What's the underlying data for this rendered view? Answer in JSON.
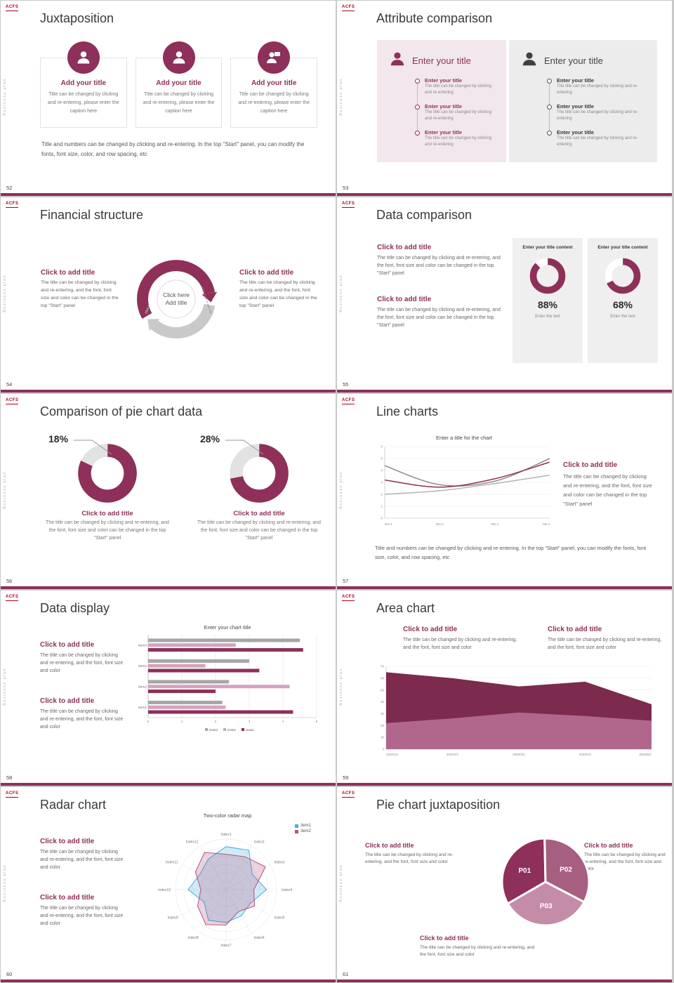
{
  "global": {
    "logo_text": "ACFS",
    "side_text": "Business plan"
  },
  "colors": {
    "accent": "#8e3059",
    "accent_mid": "#a65f80",
    "accent_light": "#c58ca8",
    "gray_dark": "#8a8a8a",
    "gray_light": "#b3b3b3",
    "blue": "#45aede"
  },
  "common": {
    "click_title": "Click to add title",
    "body_full": "The title can be changed by clicking and re-entering, and the font, font size and color can be changed in the top \"Start\" panel",
    "body_short": "The title can be changed by clicking and re-entering, and the font, font size and color",
    "note": "Title and numbers can be changed by clicking and re-entering. In the top \"Start\" panel, you can modify the fonts, font size, color, and row spacing, etc"
  },
  "slide52": {
    "title": "Juxtaposition",
    "page": "52",
    "item_title": "Add your title",
    "item_caption": "Title can be changed by clicking and re-entering, please enter the caption here"
  },
  "slide53": {
    "title": "Attribute comparison",
    "page": "53",
    "panel_title": "Enter your title",
    "item_title": "Enter your title",
    "item_caption": "The title can be changed by clicking and re-entering"
  },
  "slide54": {
    "title": "Financial structure",
    "page": "54",
    "center_line1": "Click here",
    "center_line2": "Add title",
    "arc_label": "Click here to add title"
  },
  "slide55": {
    "title": "Data comparison",
    "page": "55",
    "card_title": "Enter your title content",
    "card_caption": "Enter the text",
    "chart_data": {
      "type": "donut",
      "donuts": [
        {
          "percent": 88,
          "label": "88%"
        },
        {
          "percent": 68,
          "label": "68%"
        }
      ]
    }
  },
  "slide56": {
    "title": "Comparison of pie chart data",
    "page": "56",
    "chart_data": {
      "type": "donut",
      "donuts": [
        {
          "percent": 18,
          "label": "18%"
        },
        {
          "percent": 28,
          "label": "28%"
        }
      ]
    }
  },
  "slide57": {
    "title": "Line charts",
    "page": "57",
    "chart_data": {
      "type": "line",
      "title": "Enter a title for the chart",
      "x_labels": [
        "NO.1",
        "NO.2",
        "NO.3",
        "NO.4"
      ],
      "ylim": [
        0,
        6
      ],
      "ytick_step": 1,
      "series": [
        {
          "color": "#b3b3b3",
          "values": [
            2.0,
            2.3,
            2.9,
            3.6
          ]
        },
        {
          "color": "#8a8a8a",
          "values": [
            4.4,
            2.8,
            3.1,
            5.0
          ]
        },
        {
          "color": "#8e3059",
          "values": [
            3.2,
            2.6,
            3.3,
            4.7
          ]
        }
      ]
    }
  },
  "slide58": {
    "title": "Data display",
    "page": "58",
    "chart_data": {
      "type": "bar",
      "title": "Enter your chart title",
      "categories": [
        "Item1",
        "Item2",
        "Item3",
        "Item4"
      ],
      "xlim": [
        0,
        5
      ],
      "series": [
        {
          "name": "Data1",
          "color": "#8e3059",
          "values": [
            4.3,
            2.0,
            3.3,
            4.6
          ]
        },
        {
          "name": "Data2",
          "color": "#d4a3bd",
          "values": [
            2.3,
            4.2,
            1.7,
            2.6
          ]
        },
        {
          "name": "Data3",
          "color": "#a6a6a6",
          "values": [
            2.2,
            2.4,
            3.0,
            4.5
          ]
        }
      ],
      "legend": [
        "Data3",
        "Data2",
        "Data1"
      ]
    }
  },
  "slide59": {
    "title": "Area chart",
    "page": "59",
    "chart_data": {
      "type": "area",
      "x_labels": [
        "2020/1/1",
        "2020/2/1",
        "2020/3/1",
        "2020/4/1",
        "2020/5/1"
      ],
      "ylim": [
        0,
        70
      ],
      "ytick_step": 10,
      "series": [
        {
          "color": "#7c2a4e",
          "opacity": 1,
          "values": [
            65,
            60,
            53,
            57,
            38
          ]
        },
        {
          "color": "#b66e92",
          "opacity": 0.9,
          "values": [
            22,
            26,
            31,
            28,
            24
          ]
        }
      ]
    }
  },
  "slide60": {
    "title": "Radar chart",
    "page": "60",
    "chart_data": {
      "type": "radar",
      "title": "Two-color radar map",
      "labels": [
        "Index1",
        "Index2",
        "Index3",
        "Index4",
        "Index5",
        "Index6",
        "Index7",
        "Index8",
        "Index9",
        "Index10",
        "Index11",
        "Index12"
      ],
      "series": [
        {
          "name": "item1",
          "color": "#45aede",
          "values": [
            0.85,
            0.9,
            0.6,
            0.8,
            0.55,
            0.6,
            0.65,
            0.7,
            0.5,
            0.75,
            0.6,
            0.7
          ]
        },
        {
          "name": "item2",
          "color": "#b4517a",
          "values": [
            0.7,
            0.75,
            0.9,
            0.55,
            0.65,
            0.5,
            0.7,
            0.8,
            0.65,
            0.5,
            0.7,
            0.85
          ]
        }
      ]
    }
  },
  "slide61": {
    "title": "Pie chart juxtaposition",
    "page": "61",
    "chart_data": {
      "type": "pie",
      "segments": [
        {
          "label": "P01",
          "value": 33,
          "color": "#8e3059"
        },
        {
          "label": "P02",
          "value": 33,
          "color": "#a65f80"
        },
        {
          "label": "P03",
          "value": 34,
          "color": "#c58ca8"
        }
      ]
    }
  }
}
